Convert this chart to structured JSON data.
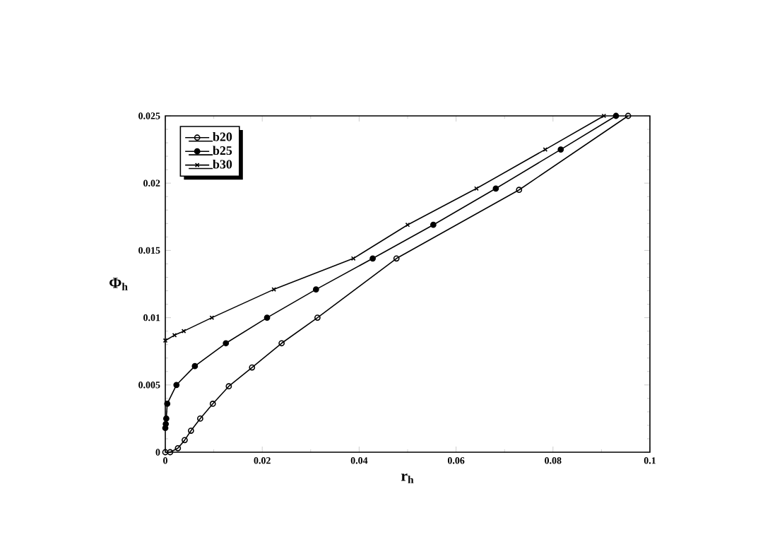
{
  "chart_data": {
    "type": "line",
    "xlabel": "r$_{h}$",
    "ylabel": "Φ$_{h}$",
    "xlim": [
      0,
      0.1
    ],
    "xticks": [
      0,
      0.02,
      0.04,
      0.06,
      0.08,
      0.1
    ],
    "ylim": [
      0,
      0.025
    ],
    "yticks": [
      0,
      0.005,
      0.01,
      0.015,
      0.02,
      0.025
    ],
    "legend": "top left",
    "grid": false,
    "line_style": "solid",
    "series": [
      {
        "name": "b20",
        "color": "#000000",
        "marker": "circle",
        "x": [
          0,
          0.001,
          0.0026,
          0.004,
          0.0053,
          0.0072,
          0.0098,
          0.0131,
          0.0179,
          0.024,
          0.0314,
          0.0477,
          0.073,
          0.0955
        ],
        "values": [
          0,
          0,
          0.0003,
          0.0009,
          0.0016,
          0.0025,
          0.0036,
          0.0049,
          0.0063,
          0.0081,
          0.01,
          0.0144,
          0.0195,
          0.025
        ]
      },
      {
        "name": "b25",
        "color": "#000000",
        "marker": "filled circle",
        "x": [
          0,
          0.0001,
          0.0002,
          0.0004,
          0.0023,
          0.0061,
          0.0125,
          0.021,
          0.0311,
          0.0428,
          0.0553,
          0.0682,
          0.0816,
          0.093
        ],
        "values": [
          0.0018,
          0.0021,
          0.0025,
          0.0036,
          0.005,
          0.0064,
          0.0081,
          0.01,
          0.0121,
          0.0144,
          0.0169,
          0.0196,
          0.0225,
          0.025
        ]
      },
      {
        "name": "b30",
        "color": "#000000",
        "marker": "cross",
        "x": [
          0,
          0.0019,
          0.0038,
          0.0096,
          0.0224,
          0.0388,
          0.05,
          0.0642,
          0.0784,
          0.0905
        ],
        "values": [
          0.0083,
          0.0087,
          0.009,
          0.01,
          0.0121,
          0.0144,
          0.0169,
          0.0196,
          0.0225,
          0.025
        ]
      }
    ]
  }
}
